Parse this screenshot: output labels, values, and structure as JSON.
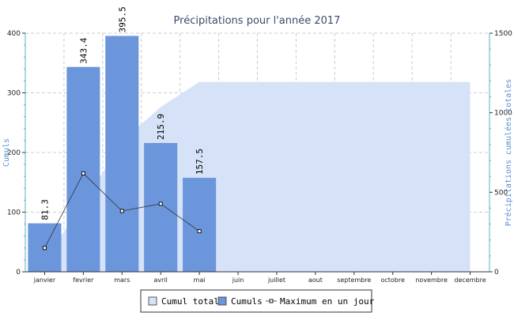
{
  "chart_data": {
    "type": "bar",
    "title": "Précipitations pour l'année 2017",
    "ylabel_left": "Cumuls",
    "ylabel_right": "Précipitations cumulées totales",
    "ylim_left": [
      0,
      400
    ],
    "ylim_right": [
      0,
      1500
    ],
    "yticks_left": [
      "0",
      "100",
      "200",
      "300",
      "400"
    ],
    "yticks_right": [
      "0",
      "500",
      "1000",
      "1500"
    ],
    "grid": true,
    "legend_position": "bottom",
    "categories": [
      "janvier",
      "fevrier",
      "mars",
      "avril",
      "mai",
      "juin",
      "juillet",
      "aout",
      "septembre",
      "octobre",
      "novembre",
      "decembre"
    ],
    "series": [
      {
        "name": "Cumul total",
        "kind": "area",
        "axis": "right",
        "color": "#d6e2f8",
        "values": [
          81.3,
          424.7,
          820.2,
          1036.1,
          1193.6,
          1193.6,
          1193.6,
          1193.6,
          1193.6,
          1193.6,
          1193.6,
          1193.6
        ]
      },
      {
        "name": "Cumuls",
        "kind": "bar",
        "axis": "left",
        "color": "#6b96dc",
        "values": [
          81.3,
          343.4,
          395.5,
          215.9,
          157.5,
          null,
          null,
          null,
          null,
          null,
          null,
          null
        ],
        "labels": [
          "81.3",
          "343.4",
          "395.5",
          "215.9",
          "157.5",
          "",
          "",
          "",
          "",
          "",
          "",
          ""
        ]
      },
      {
        "name": "Maximum en un jour",
        "kind": "line",
        "axis": "left",
        "color": "#333333",
        "values": [
          40,
          165,
          102,
          114,
          68,
          null,
          null,
          null,
          null,
          null,
          null,
          null
        ]
      }
    ]
  }
}
